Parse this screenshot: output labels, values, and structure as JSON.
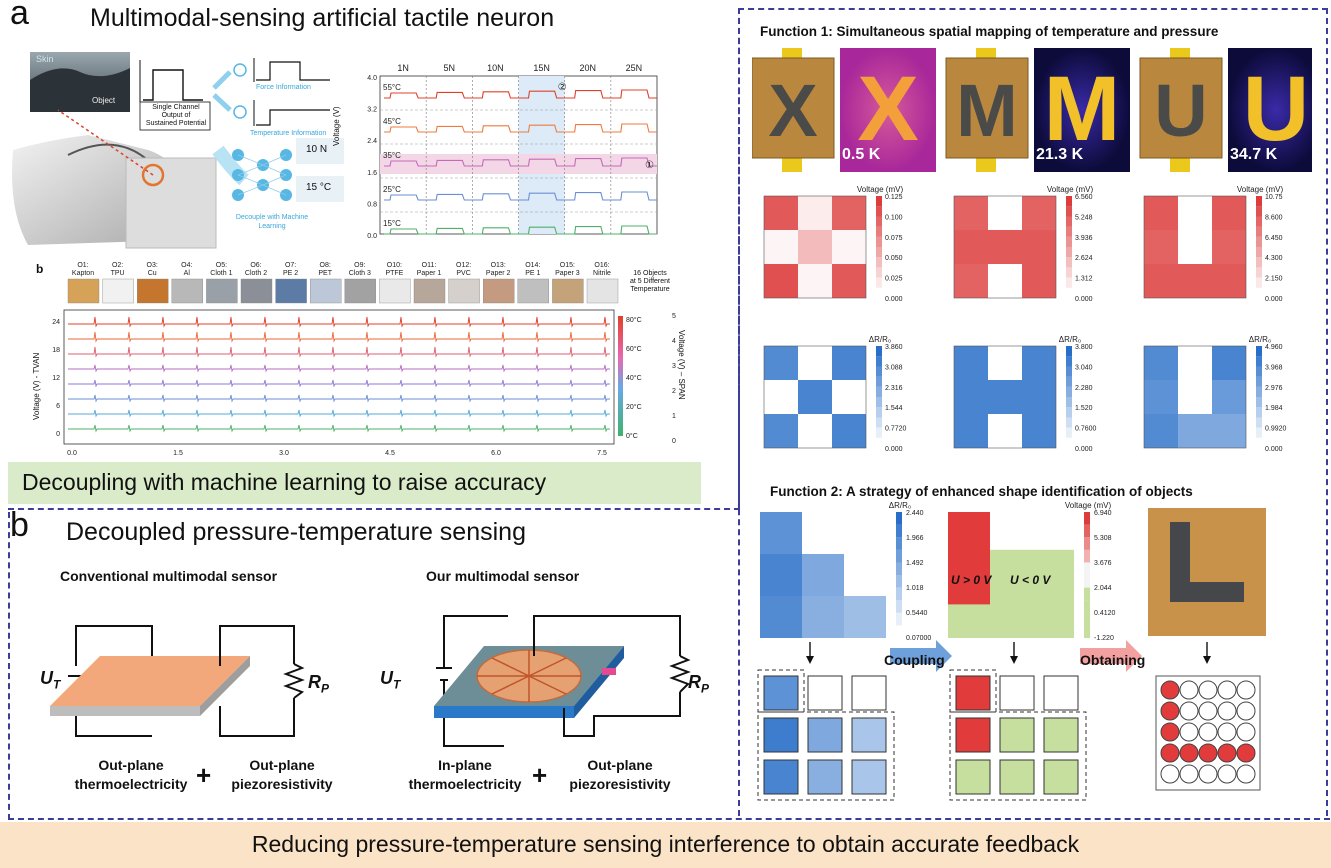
{
  "panel_a": {
    "letter": "a",
    "title": "Multimodal-sensing artificial tactile neuron",
    "schematic": {
      "skin_label": "Skin",
      "object_label": "Object",
      "single_channel": [
        "Single Channel",
        "Output of",
        "Sustained Potential"
      ],
      "force_info": "Force Information",
      "temp_info": "Temperature Information",
      "force_value": "10 N",
      "temp_value": "15 °C",
      "decouple": [
        "Decouple with Machine",
        "Learning"
      ]
    },
    "voltage_chart": {
      "forces": [
        "1N",
        "5N",
        "10N",
        "15N",
        "20N",
        "25N"
      ],
      "temps": [
        "55°C",
        "45°C",
        "35°C",
        "25°C",
        "15°C"
      ],
      "yticks": [
        "4.0",
        "3.2",
        "2.4",
        "1.6",
        "0.8",
        "0.0"
      ],
      "ylabel": "Voltage (V)",
      "markers": [
        "②",
        "①"
      ]
    },
    "sub_b": {
      "letter": "b",
      "objects": [
        "O1:",
        "Kapton",
        "O2:",
        "TPU",
        "O3:",
        "Cu",
        "O4:",
        "Al",
        "O5:",
        "Cloth 1",
        "O6:",
        "Cloth 2",
        "O7:",
        "PE 2",
        "O8:",
        "PET",
        "O9:",
        "Cloth 3",
        "O10:",
        "PTFE",
        "O11:",
        "Paper 1",
        "O12:",
        "PVC",
        "O13:",
        "Paper 2",
        "O14:",
        "PE 1",
        "O15:",
        "Paper 3",
        "O16:",
        "Nitrile"
      ],
      "note": [
        "16 Objects",
        "at 5 Different",
        "Temperature"
      ],
      "ylabel_left": "Voltage (V) - TVAN",
      "ylabel_right": "Voltage (V) – SPAN",
      "left_ticks": [
        "24",
        "18",
        "12",
        "6",
        "0"
      ],
      "right_ticks": [
        "5",
        "4",
        "3",
        "2",
        "1",
        "0"
      ],
      "xticks": [
        "0.0",
        "1.5",
        "3.0",
        "4.5",
        "6.0",
        "7.5"
      ],
      "colorbar": [
        "80°C",
        "60°C",
        "40°C",
        "20°C",
        "0°C"
      ]
    },
    "banner": "Decoupling with machine learning to raise accuracy"
  },
  "panel_b": {
    "letter": "b",
    "title": "Decoupled pressure-temperature sensing",
    "conventional": {
      "title": "Conventional multimodal sensor",
      "ut": "U",
      "ut_sub": "T",
      "rp": "R",
      "rp_sub": "P",
      "left": [
        "Out-plane",
        "thermoelectricity"
      ],
      "right": [
        "Out-plane",
        "piezoresistivity"
      ]
    },
    "ours": {
      "title": "Our multimodal sensor",
      "ut": "U",
      "ut_sub": "T",
      "rp": "R",
      "rp_sub": "P",
      "left": [
        "In-plane",
        "thermoelectricity"
      ],
      "right": [
        "Out-plane",
        "piezoresistivity"
      ]
    },
    "plus": "+",
    "banner": "Reducing pressure-temperature sensing interference to obtain accurate feedback"
  },
  "function1": {
    "title": "Function 1: Simultaneous spatial mapping of temperature and pressure",
    "photos": [
      {
        "letter": "X",
        "thermal": "0.5 K"
      },
      {
        "letter": "M",
        "thermal": "21.3 K"
      },
      {
        "letter": "U",
        "thermal": "34.7 K"
      }
    ],
    "voltage_label": "Voltage (mV)",
    "resist_label": "ΔR/R₀",
    "voltage_maps": [
      {
        "ticks": [
          "0.125",
          "0.100",
          "0.075",
          "0.050",
          "0.025",
          "0.000"
        ],
        "grid": [
          [
            0.85,
            0.1,
            0.8
          ],
          [
            0.05,
            0.35,
            0.05
          ],
          [
            0.9,
            0.05,
            0.85
          ]
        ]
      },
      {
        "ticks": [
          "6.560",
          "5.248",
          "3.936",
          "2.624",
          "1.312",
          "0.000"
        ],
        "grid": [
          [
            0.8,
            0.0,
            0.8
          ],
          [
            0.85,
            0.85,
            0.85
          ],
          [
            0.8,
            0.0,
            0.85
          ]
        ]
      },
      {
        "ticks": [
          "10.75",
          "8.600",
          "6.450",
          "4.300",
          "2.150",
          "0.000"
        ],
        "grid": [
          [
            0.85,
            0.0,
            0.85
          ],
          [
            0.8,
            0.0,
            0.8
          ],
          [
            0.85,
            0.85,
            0.85
          ]
        ]
      }
    ],
    "resist_maps": [
      {
        "ticks": [
          "3.860",
          "3.088",
          "2.316",
          "1.544",
          "0.7720",
          "0.000"
        ],
        "grid": [
          [
            0.8,
            0.0,
            0.85
          ],
          [
            0.0,
            0.85,
            0.0
          ],
          [
            0.8,
            0.0,
            0.85
          ]
        ]
      },
      {
        "ticks": [
          "3.800",
          "3.040",
          "2.280",
          "1.520",
          "0.7600",
          "0.000"
        ],
        "grid": [
          [
            0.85,
            0.0,
            0.85
          ],
          [
            0.85,
            0.85,
            0.85
          ],
          [
            0.85,
            0.0,
            0.85
          ]
        ]
      },
      {
        "ticks": [
          "4.960",
          "3.968",
          "2.976",
          "1.984",
          "0.9920",
          "0.000"
        ],
        "grid": [
          [
            0.8,
            0.0,
            0.85
          ],
          [
            0.75,
            0.0,
            0.7
          ],
          [
            0.8,
            0.6,
            0.6
          ]
        ]
      }
    ]
  },
  "function2": {
    "title": "Function 2: A strategy of enhanced shape identification of objects",
    "resist_label": "ΔR/R₀",
    "resist_ticks": [
      "2.440",
      "1.966",
      "1.492",
      "1.018",
      "0.5440",
      "0.07000"
    ],
    "resist_grid": [
      [
        0.75,
        0.0,
        0.0
      ],
      [
        0.85,
        0.6,
        0.0
      ],
      [
        0.8,
        0.55,
        0.45
      ]
    ],
    "voltage_label": "Voltage (mV)",
    "voltage_ticks": [
      "6.940",
      "5.308",
      "3.676",
      "2.044",
      "0.4120",
      "-1.220"
    ],
    "u_pos": "U > 0 V",
    "u_neg": "U < 0 V",
    "coupling": "Coupling",
    "obtaining": "Obtaining"
  },
  "colors": {
    "frame": "#3c3c9a",
    "red": "#e23b3b",
    "blue": "#2f6fc4",
    "green": "#c6df9f",
    "banner_green": "#d9ebc9",
    "banner_orange": "#fbe3c7"
  }
}
